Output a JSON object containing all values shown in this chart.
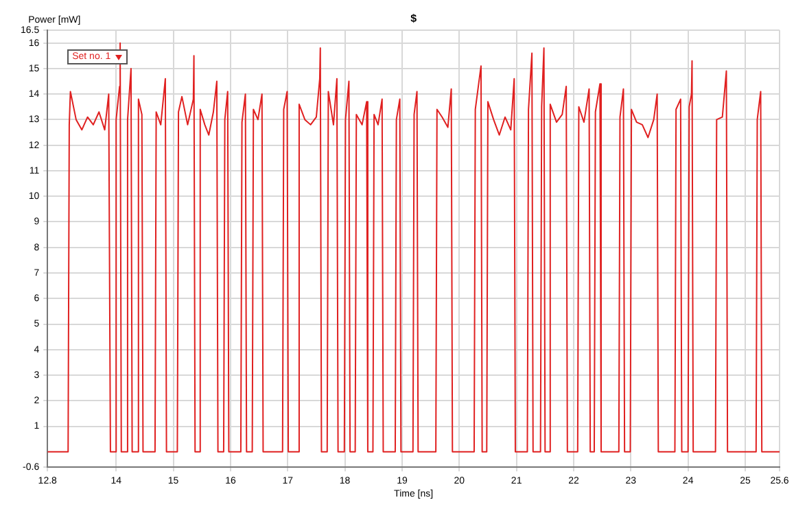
{
  "chart_data": {
    "type": "line",
    "title": "$",
    "xlabel": "Time [ns]",
    "ylabel": "Power [mW]",
    "xlim": [
      12.8,
      25.6
    ],
    "xticks": [
      12.8,
      14,
      15,
      16,
      17,
      18,
      19,
      20,
      21,
      22,
      23,
      24,
      25,
      25.6
    ],
    "ylim": [
      -0.6,
      16.5
    ],
    "yticks": [
      -0.6,
      1,
      2,
      3,
      4,
      5,
      6,
      7,
      8,
      9,
      10,
      11,
      12,
      13,
      14,
      15,
      16,
      16.5
    ],
    "grid": true,
    "legend": "top left",
    "marker": "none",
    "line_style": "solid",
    "series": [
      {
        "name": "Set no. 1",
        "color": "#e02020",
        "x": [
          12.8,
          13.16,
          13.18,
          13.2,
          13.3,
          13.4,
          13.5,
          13.6,
          13.7,
          13.8,
          13.87,
          13.9,
          13.99,
          14.0,
          14.06,
          14.07,
          14.09,
          14.18,
          14.2,
          14.26,
          14.28,
          14.37,
          14.39,
          14.45,
          14.47,
          14.68,
          14.7,
          14.78,
          14.86,
          14.88,
          15.07,
          15.09,
          15.15,
          15.25,
          15.35,
          15.36,
          15.38,
          15.45,
          15.47,
          15.55,
          15.62,
          15.7,
          15.76,
          15.78,
          15.88,
          15.9,
          15.95,
          15.97,
          16.18,
          16.2,
          16.26,
          16.28,
          16.38,
          16.4,
          16.48,
          16.55,
          16.57,
          16.91,
          16.93,
          16.99,
          17.01,
          17.18,
          17.2,
          17.3,
          17.4,
          17.5,
          17.56,
          17.57,
          17.59,
          17.69,
          17.71,
          17.8,
          17.86,
          17.88,
          17.99,
          18.01,
          18.07,
          18.09,
          18.18,
          18.2,
          18.3,
          18.38,
          18.4,
          18.49,
          18.51,
          18.58,
          18.65,
          18.67,
          18.88,
          18.9,
          18.96,
          18.98,
          19.19,
          19.21,
          19.26,
          19.28,
          19.59,
          19.61,
          19.7,
          19.8,
          19.86,
          19.88,
          20.26,
          20.28,
          20.38,
          20.4,
          20.48,
          20.5,
          20.6,
          20.7,
          20.8,
          20.9,
          20.96,
          20.98,
          21.19,
          21.21,
          21.27,
          21.29,
          21.42,
          21.44,
          21.48,
          21.5,
          21.57,
          21.59,
          21.7,
          21.8,
          21.87,
          21.89,
          22.07,
          22.09,
          22.18,
          22.27,
          22.29,
          22.36,
          22.38,
          22.46,
          22.48,
          22.79,
          22.81,
          22.87,
          22.89,
          22.99,
          23.01,
          23.1,
          23.2,
          23.3,
          23.4,
          23.46,
          23.48,
          23.77,
          23.79,
          23.87,
          23.89,
          24.0,
          24.02,
          24.06,
          24.07,
          24.09,
          24.48,
          24.5,
          24.6,
          24.67,
          24.69,
          25.19,
          25.21,
          25.27,
          25.29,
          25.6
        ],
        "values": [
          0,
          0,
          12.8,
          14.1,
          13.0,
          12.6,
          13.1,
          12.8,
          13.3,
          12.6,
          14.0,
          0,
          0,
          13.0,
          14.3,
          16.0,
          0,
          0,
          13.0,
          15.0,
          0,
          0,
          13.8,
          13.2,
          0,
          0,
          13.3,
          12.8,
          14.6,
          0,
          0,
          13.3,
          13.9,
          12.8,
          13.8,
          15.5,
          0,
          0,
          13.4,
          12.8,
          12.4,
          13.3,
          14.5,
          0,
          0,
          13.0,
          14.1,
          0,
          0,
          12.9,
          14.0,
          0,
          0,
          13.4,
          13.0,
          14.0,
          0,
          0,
          13.4,
          14.1,
          0,
          0,
          13.6,
          13.0,
          12.8,
          13.1,
          14.6,
          15.8,
          0,
          0,
          14.1,
          12.8,
          14.6,
          0,
          0,
          13.0,
          14.5,
          0,
          0,
          13.2,
          12.8,
          13.7,
          0,
          0,
          13.2,
          12.8,
          13.8,
          0,
          0,
          13.0,
          13.8,
          0,
          0,
          13.2,
          14.1,
          0,
          0,
          13.4,
          13.1,
          12.7,
          14.2,
          0,
          0,
          13.4,
          15.1,
          0,
          0,
          13.7,
          13.0,
          12.4,
          13.1,
          12.6,
          14.6,
          0,
          0,
          13.4,
          15.6,
          0,
          0,
          13.5,
          15.8,
          0,
          0,
          13.6,
          12.9,
          13.2,
          14.3,
          0,
          0,
          13.5,
          12.9,
          14.2,
          0,
          0,
          13.3,
          14.4,
          0,
          0,
          13.1,
          14.2,
          0,
          0,
          13.4,
          12.9,
          12.8,
          12.3,
          13.0,
          14.0,
          0,
          0,
          13.4,
          13.8,
          0,
          0,
          13.5,
          14.0,
          15.3,
          0,
          0,
          13.0,
          13.1,
          14.9,
          0,
          0,
          13.0,
          14.1,
          0,
          0
        ]
      }
    ]
  }
}
